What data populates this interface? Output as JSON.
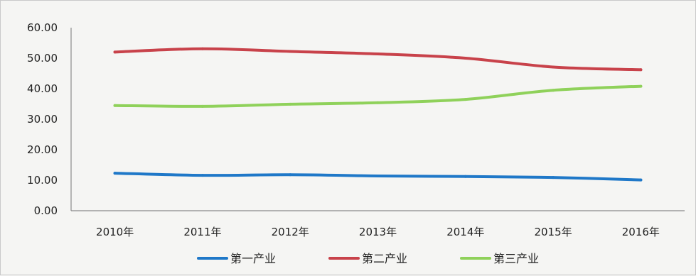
{
  "chart_data": {
    "type": "line",
    "categories": [
      "2010年",
      "2011年",
      "2012年",
      "2013年",
      "2014年",
      "2015年",
      "2016年"
    ],
    "y_ticks": [
      "0.00",
      "10.00",
      "20.00",
      "30.00",
      "40.00",
      "50.00",
      "60.00"
    ],
    "ylim": [
      0,
      60
    ],
    "grid": false,
    "legend_position": "bottom",
    "series": [
      {
        "name": "第一产业",
        "color": "#1f78c8",
        "values": [
          12.3,
          11.6,
          11.8,
          11.4,
          11.2,
          10.9,
          10.1
        ]
      },
      {
        "name": "第二产业",
        "color": "#c8424a",
        "values": [
          52.0,
          53.1,
          52.2,
          51.4,
          50.0,
          47.1,
          46.2
        ]
      },
      {
        "name": "第三产业",
        "color": "#8fd15a",
        "values": [
          34.5,
          34.2,
          34.9,
          35.4,
          36.5,
          39.5,
          40.8
        ]
      }
    ]
  }
}
